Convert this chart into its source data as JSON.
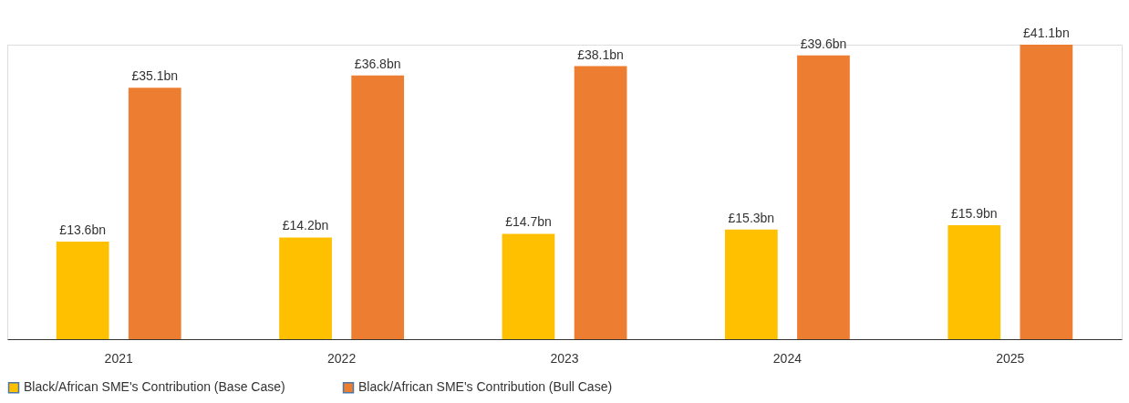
{
  "chart_data": {
    "type": "bar",
    "categories": [
      "2021",
      "2022",
      "2023",
      "2024",
      "2025"
    ],
    "series": [
      {
        "name": "Black/African SME's Contribution (Base Case)",
        "color": "#ffc000",
        "values": [
          13.6,
          14.2,
          14.7,
          15.3,
          15.9
        ],
        "value_labels": [
          "£13.6bn",
          "£14.2bn",
          "£14.7bn",
          "£15.3bn",
          "£15.9bn"
        ]
      },
      {
        "name": "Black/African SME's Contribution (Bull Case)",
        "color": "#ed7d31",
        "values": [
          35.1,
          36.8,
          38.1,
          39.6,
          41.1
        ],
        "value_labels": [
          "£35.1bn",
          "£36.8bn",
          "£38.1bn",
          "£39.6bn",
          "£41.1bn"
        ]
      }
    ],
    "legend": "bottom",
    "grid": false
  }
}
